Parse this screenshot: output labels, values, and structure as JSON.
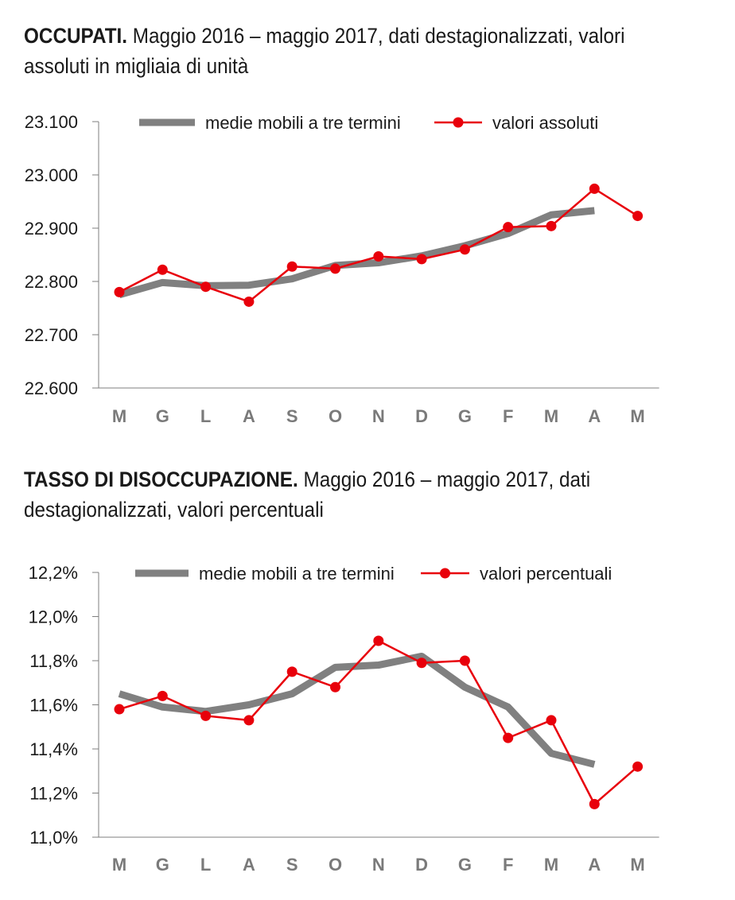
{
  "chart_data": [
    {
      "type": "line",
      "title_bold": "OCCUPATI.",
      "title_rest": " Maggio 2016 – maggio 2017, dati destagionalizzati, valori assoluti in migliaia di unità",
      "categories": [
        "M",
        "G",
        "L",
        "A",
        "S",
        "O",
        "N",
        "D",
        "G",
        "F",
        "M",
        "A",
        "M"
      ],
      "y_tick_labels": [
        "22.600",
        "22.700",
        "22.800",
        "22.900",
        "23.000",
        "23.100"
      ],
      "ylim": [
        22600,
        23100
      ],
      "series": [
        {
          "name": "medie mobili a tre termini",
          "color": "#808080",
          "values": [
            22775,
            22798,
            22792,
            22793,
            22805,
            22830,
            22835,
            22848,
            22867,
            22890,
            22925,
            22933,
            null
          ]
        },
        {
          "name": "valori assoluti",
          "color": "#e8000b",
          "values": [
            22780,
            22822,
            22790,
            22762,
            22828,
            22824,
            22847,
            22842,
            22860,
            22902,
            22904,
            22974,
            22923
          ]
        }
      ],
      "legend_position": "top"
    },
    {
      "type": "line",
      "title_bold": "TASSO DI DISOCCUPAZIONE.",
      "title_rest": " Maggio 2016 – maggio 2017, dati destagionalizzati, valori percentuali",
      "categories": [
        "M",
        "G",
        "L",
        "A",
        "S",
        "O",
        "N",
        "D",
        "G",
        "F",
        "M",
        "A",
        "M"
      ],
      "y_tick_labels": [
        "11,0%",
        "11,2%",
        "11,4%",
        "11,6%",
        "11,8%",
        "12,0%",
        "12,2%"
      ],
      "ylim": [
        11.0,
        12.2
      ],
      "series": [
        {
          "name": "medie mobili a tre termini",
          "color": "#808080",
          "values": [
            11.65,
            11.59,
            11.57,
            11.6,
            11.65,
            11.77,
            11.78,
            11.82,
            11.68,
            11.59,
            11.38,
            11.33,
            null
          ]
        },
        {
          "name": "valori percentuali",
          "color": "#e8000b",
          "values": [
            11.58,
            11.64,
            11.55,
            11.53,
            11.75,
            11.68,
            11.89,
            11.79,
            11.8,
            11.45,
            11.53,
            11.15,
            11.32
          ]
        }
      ],
      "legend_position": "top"
    }
  ]
}
